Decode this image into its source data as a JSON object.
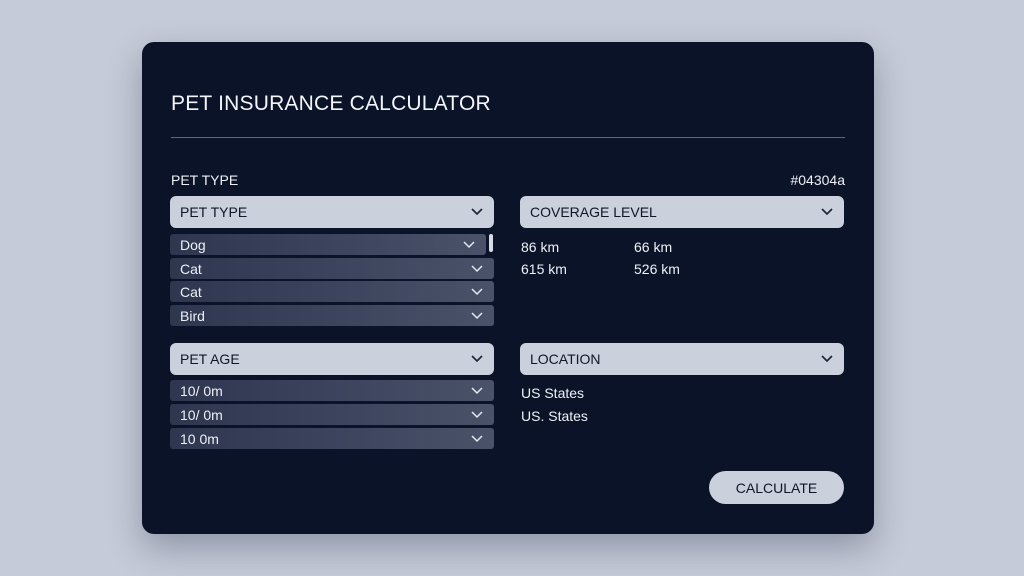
{
  "title": "PET INSURANCE CALCULATOR",
  "section_label": "PET TYPE",
  "hex_code": "#04304a",
  "pet_type": {
    "select_label": "PET TYPE",
    "options": [
      "Dog",
      "Cat",
      "Cat",
      "Bird"
    ]
  },
  "coverage": {
    "select_label": "COVERAGE LEVEL",
    "values": [
      "86 km",
      "66 km",
      "615 km",
      "526 km"
    ]
  },
  "pet_age": {
    "select_label": "PET AGE",
    "options": [
      "10/ 0m",
      "10/ 0m",
      "10 0m"
    ]
  },
  "location": {
    "select_label": "LOCATION",
    "values": [
      "US States",
      "US. States"
    ]
  },
  "calculate_label": "CALCULATE",
  "icons": {
    "dropdown": "chevron-down-icon"
  },
  "colors": {
    "background": "#c5cbd8",
    "card": "#0a1327",
    "control": "#cbd0dd"
  }
}
